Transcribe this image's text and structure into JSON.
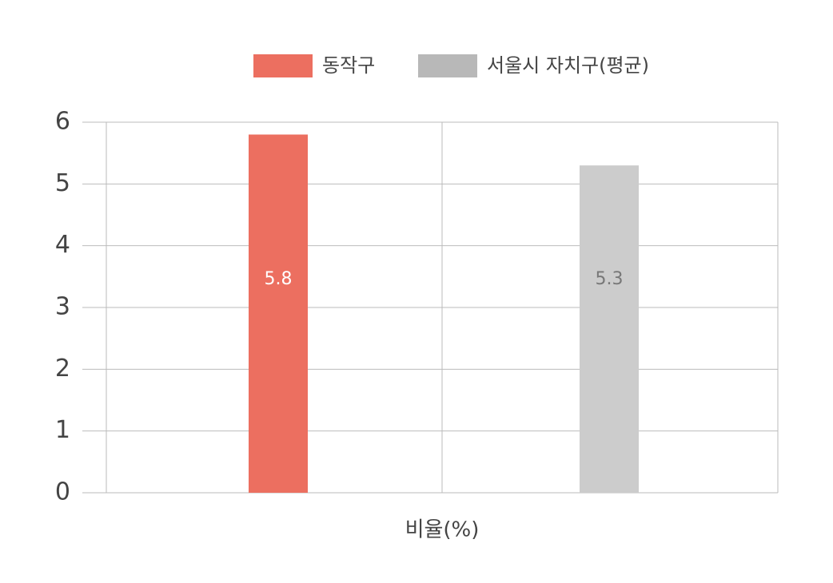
{
  "chart_data": {
    "type": "bar",
    "categories": [
      "비율(%)"
    ],
    "series": [
      {
        "name": "동작구",
        "color": "#ec6f60",
        "values": [
          5.8
        ]
      },
      {
        "name": "서울시 자치구(평균)",
        "color": "#cccccc",
        "values": [
          5.3
        ]
      }
    ],
    "ylim": [
      0,
      6
    ],
    "yticks": [
      0,
      1,
      2,
      3,
      4,
      5,
      6
    ],
    "grid": true,
    "legend": "top"
  }
}
